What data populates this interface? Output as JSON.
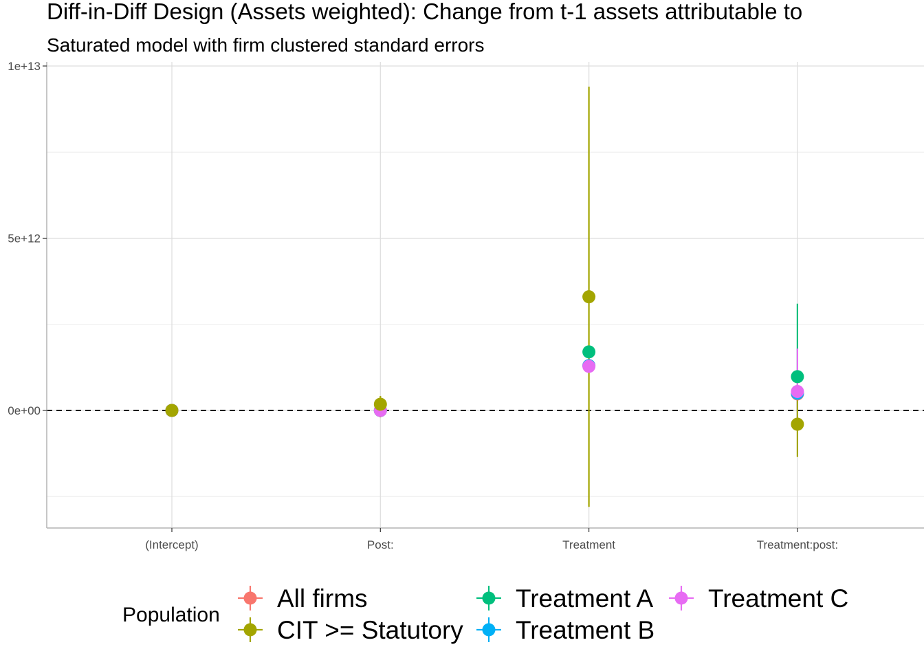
{
  "chart_data": {
    "type": "scatter",
    "title": "Diff-in-Diff Design (Assets weighted): Change from t-1 assets attributable to",
    "subtitle": "Saturated model with firm clustered standard errors",
    "xlabel": "",
    "ylabel": "",
    "categories": [
      "(Intercept)",
      "Post:",
      "Treatment",
      "Treatment:post:"
    ],
    "y_ticks": [
      {
        "value": 0,
        "label": "0e+00"
      },
      {
        "value": 5000000000000,
        "label": "5e+12"
      },
      {
        "value": 10000000000000,
        "label": "1e+13"
      }
    ],
    "ylim": [
      -3400000000000,
      10000000000000
    ],
    "grid": true,
    "reference_line": {
      "value": 0,
      "style": "dashed"
    },
    "legend": {
      "title": "Population",
      "position": "bottom",
      "order": [
        "All firms",
        "CIT >= Statutory",
        "Treatment A",
        "Treatment B",
        "Treatment C"
      ]
    },
    "series": [
      {
        "name": "All firms",
        "color": "#F8766D",
        "points": [
          {
            "category": "(Intercept)",
            "estimate": 0,
            "lower": 0,
            "upper": 0
          },
          {
            "category": "Post:",
            "estimate": 0,
            "lower": 0,
            "upper": 0
          },
          {
            "category": "Treatment",
            "estimate": 1300000000000,
            "lower": 1300000000000,
            "upper": 1300000000000
          },
          {
            "category": "Treatment:post:",
            "estimate": 480000000000,
            "lower": 480000000000,
            "upper": 480000000000
          }
        ]
      },
      {
        "name": "Treatment B",
        "color": "#00B0F6",
        "points": [
          {
            "category": "(Intercept)",
            "estimate": 0,
            "lower": 0,
            "upper": 0
          },
          {
            "category": "Post:",
            "estimate": 0,
            "lower": 0,
            "upper": 0
          },
          {
            "category": "Treatment",
            "estimate": 1300000000000,
            "lower": 1300000000000,
            "upper": 1300000000000
          },
          {
            "category": "Treatment:post:",
            "estimate": 500000000000,
            "lower": 500000000000,
            "upper": 500000000000
          }
        ]
      },
      {
        "name": "Treatment A",
        "color": "#00BF7D",
        "points": [
          {
            "category": "(Intercept)",
            "estimate": 0,
            "lower": 0,
            "upper": 0
          },
          {
            "category": "Post:",
            "estimate": 0,
            "lower": 0,
            "upper": 0
          },
          {
            "category": "Treatment",
            "estimate": 1700000000000,
            "lower": 1700000000000,
            "upper": 1700000000000
          },
          {
            "category": "Treatment:post:",
            "estimate": 980000000000,
            "lower": -200000000000,
            "upper": 3100000000000
          }
        ]
      },
      {
        "name": "Treatment C",
        "color": "#E76BF3",
        "points": [
          {
            "category": "(Intercept)",
            "estimate": 0,
            "lower": 0,
            "upper": 0
          },
          {
            "category": "Post:",
            "estimate": 0,
            "lower": 0,
            "upper": 0
          },
          {
            "category": "Treatment",
            "estimate": 1280000000000,
            "lower": 1280000000000,
            "upper": 1280000000000
          },
          {
            "category": "Treatment:post:",
            "estimate": 550000000000,
            "lower": -600000000000,
            "upper": 1800000000000
          }
        ]
      },
      {
        "name": "CIT >= Statutory",
        "color": "#A3A500",
        "points": [
          {
            "category": "(Intercept)",
            "estimate": 0,
            "lower": 0,
            "upper": 0
          },
          {
            "category": "Post:",
            "estimate": 180000000000,
            "lower": -200000000000,
            "upper": 420000000000
          },
          {
            "category": "Treatment",
            "estimate": 3300000000000,
            "lower": -2800000000000,
            "upper": 9400000000000
          },
          {
            "category": "Treatment:post:",
            "estimate": -400000000000,
            "lower": -1350000000000,
            "upper": 450000000000
          }
        ]
      }
    ]
  }
}
